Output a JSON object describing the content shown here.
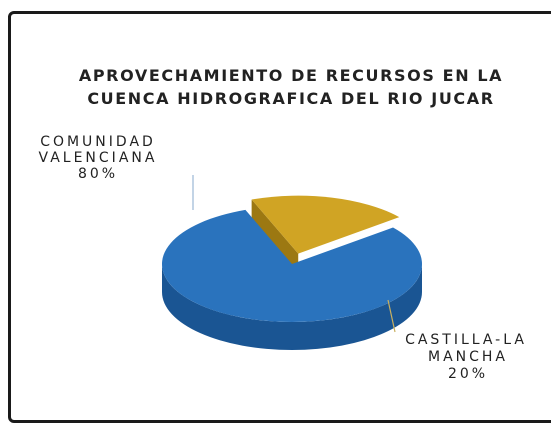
{
  "chart_data": {
    "type": "pie",
    "title_lines": [
      "APROVECHAMIENTO DE RECURSOS EN LA",
      "CUENCA HIDROGRAFICA DEL RIO JUCAR"
    ],
    "slices": [
      {
        "label_lines": [
          "COMUNIDAD",
          "VALENCIANA",
          "80%"
        ],
        "category": "COMUNIDAD VALENCIANA",
        "percent_label": "80%",
        "value": 80,
        "color": "#2a73bd",
        "side_color": "#1a5593"
      },
      {
        "label_lines": [
          "CASTILLA-LA",
          "MANCHA",
          "20%"
        ],
        "category": "CASTILLA-LA MANCHA",
        "percent_label": "20%",
        "value": 20,
        "color": "#d0a424",
        "side_color": "#9c7812"
      }
    ],
    "style": "3d",
    "legend": "none"
  }
}
